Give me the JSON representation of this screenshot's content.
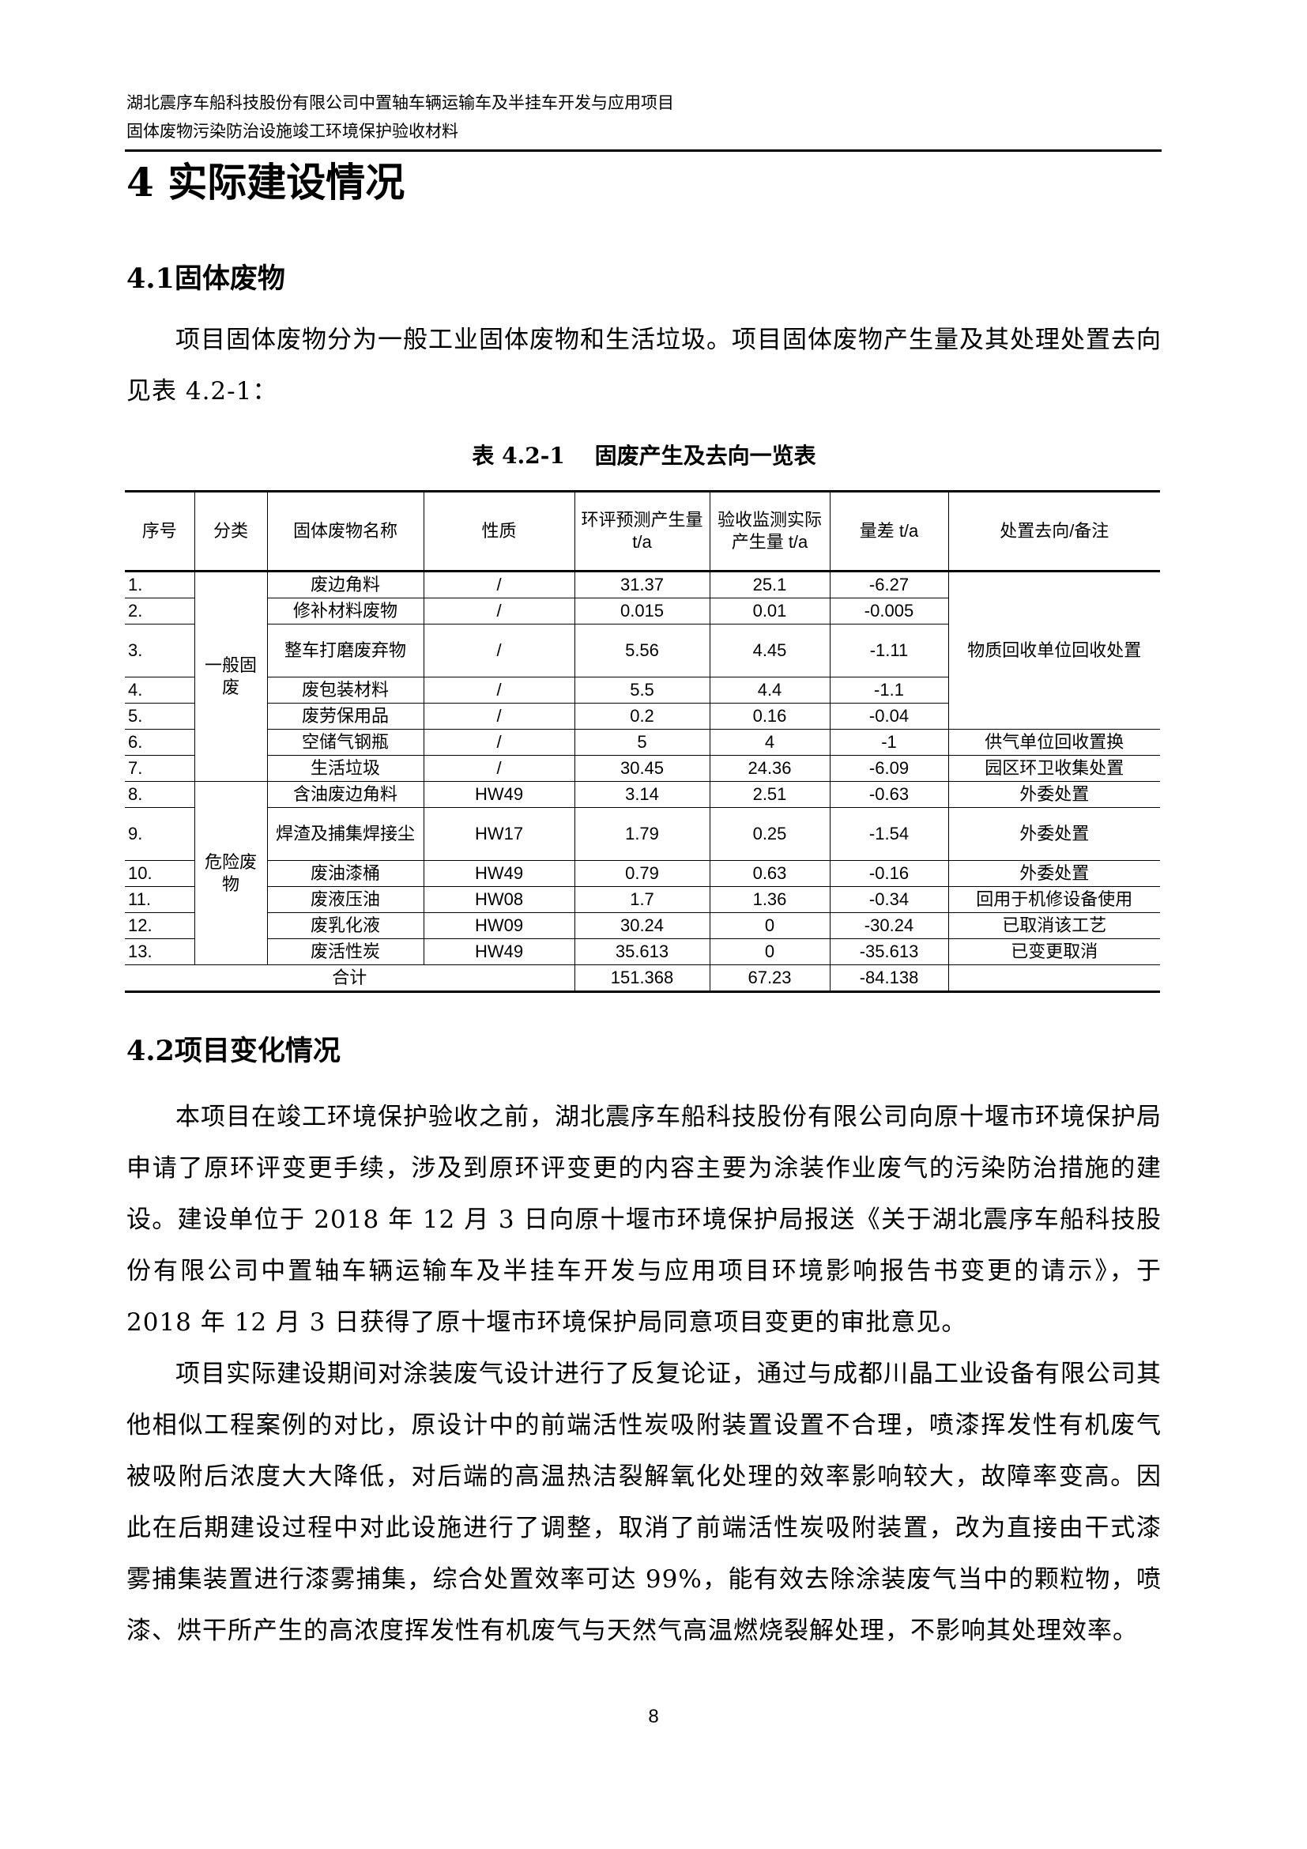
{
  "header": {
    "line1": "湖北震序车船科技股份有限公司中置轴车辆运输车及半挂车开发与应用项目",
    "line2": "固体废物污染防治设施竣工环境保护验收材料"
  },
  "chapter_title": "4 实际建设情况",
  "section1": {
    "title": "4.1固体废物",
    "paragraph": "项目固体废物分为一般工业固体废物和生活垃圾。项目固体废物产生量及其处理处置去向见表 4.2-1："
  },
  "table": {
    "caption": "表 4.2-1　 固废产生及去向一览表",
    "headers": [
      "序号",
      "分类",
      "固体废物名称",
      "性质",
      "环评预测产生量 t/a",
      "验收监测实际产生量 t/a",
      "量差 t/a",
      "处置去向/备注"
    ],
    "categories": {
      "general": "一般固废",
      "hazardous": "危险废物"
    },
    "rows": [
      {
        "no": "1.",
        "name": "废边角料",
        "nature": "/",
        "predicted": "31.37",
        "actual": "25.1",
        "diff": "-6.27",
        "disposal": "物质回收单位回收处置"
      },
      {
        "no": "2.",
        "name": "修补材料废物",
        "nature": "/",
        "predicted": "0.015",
        "actual": "0.01",
        "diff": "-0.005",
        "disposal": ""
      },
      {
        "no": "3.",
        "name": "整车打磨废弃物",
        "nature": "/",
        "predicted": "5.56",
        "actual": "4.45",
        "diff": "-1.11",
        "disposal": ""
      },
      {
        "no": "4.",
        "name": "废包装材料",
        "nature": "/",
        "predicted": "5.5",
        "actual": "4.4",
        "diff": "-1.1",
        "disposal": ""
      },
      {
        "no": "5.",
        "name": "废劳保用品",
        "nature": "/",
        "predicted": "0.2",
        "actual": "0.16",
        "diff": "-0.04",
        "disposal": ""
      },
      {
        "no": "6.",
        "name": "空储气钢瓶",
        "nature": "/",
        "predicted": "5",
        "actual": "4",
        "diff": "-1",
        "disposal": "供气单位回收置换"
      },
      {
        "no": "7.",
        "name": "生活垃圾",
        "nature": "/",
        "predicted": "30.45",
        "actual": "24.36",
        "diff": "-6.09",
        "disposal": "园区环卫收集处置"
      },
      {
        "no": "8.",
        "name": "含油废边角料",
        "nature": "HW49",
        "predicted": "3.14",
        "actual": "2.51",
        "diff": "-0.63",
        "disposal": "外委处置"
      },
      {
        "no": "9.",
        "name": "焊渣及捕集焊接尘",
        "nature": "HW17",
        "predicted": "1.79",
        "actual": "0.25",
        "diff": "-1.54",
        "disposal": "外委处置"
      },
      {
        "no": "10.",
        "name": "废油漆桶",
        "nature": "HW49",
        "predicted": "0.79",
        "actual": "0.63",
        "diff": "-0.16",
        "disposal": "外委处置"
      },
      {
        "no": "11.",
        "name": "废液压油",
        "nature": "HW08",
        "predicted": "1.7",
        "actual": "1.36",
        "diff": "-0.34",
        "disposal": "回用于机修设备使用"
      },
      {
        "no": "12.",
        "name": "废乳化液",
        "nature": "HW09",
        "predicted": "30.24",
        "actual": "0",
        "diff": "-30.24",
        "disposal": "已取消该工艺"
      },
      {
        "no": "13.",
        "name": "废活性炭",
        "nature": "HW49",
        "predicted": "35.613",
        "actual": "0",
        "diff": "-35.613",
        "disposal": "已变更取消"
      }
    ],
    "total": {
      "label": "合计",
      "predicted": "151.368",
      "actual": "67.23",
      "diff": "-84.138"
    }
  },
  "section2": {
    "title": "4.2项目变化情况",
    "paragraphs": [
      "本项目在竣工环境保护验收之前，湖北震序车船科技股份有限公司向原十堰市环境保护局申请了原环评变更手续，涉及到原环评变更的内容主要为涂装作业废气的污染防治措施的建设。建设单位于 2018 年 12 月 3 日向原十堰市环境保护局报送《关于湖北震序车船科技股份有限公司中置轴车辆运输车及半挂车开发与应用项目环境影响报告书变更的请示》，于 2018 年 12 月 3 日获得了原十堰市环境保护局同意项目变更的审批意见。",
      "项目实际建设期间对涂装废气设计进行了反复论证，通过与成都川晶工业设备有限公司其他相似工程案例的对比，原设计中的前端活性炭吸附装置设置不合理，喷漆挥发性有机废气被吸附后浓度大大降低，对后端的高温热洁裂解氧化处理的效率影响较大，故障率变高。因此在后期建设过程中对此设施进行了调整，取消了前端活性炭吸附装置，改为直接由干式漆雾捕集装置进行漆雾捕集，综合处置效率可达 99%，能有效去除涂装废气当中的颗粒物，喷漆、烘干所产生的高浓度挥发性有机废气与天然气高温燃烧裂解处理，不影响其处理效率。"
    ]
  },
  "page_number": "8"
}
